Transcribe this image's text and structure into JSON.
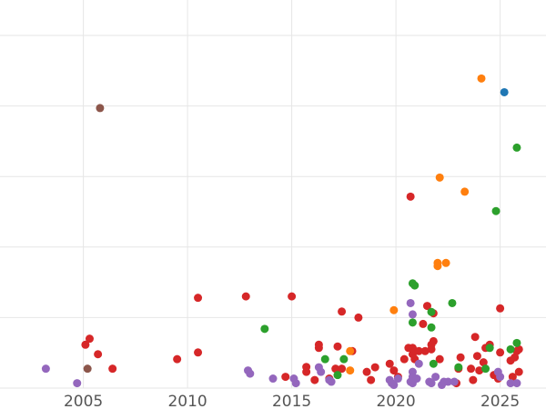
{
  "chart_data": {
    "type": "scatter",
    "title": "",
    "xlabel": "",
    "ylabel": "",
    "xlim": [
      2001.0,
      2027.2
    ],
    "ylim": [
      0,
      100
    ],
    "grid": true,
    "legend": "none",
    "x_ticks": [
      2005,
      2010,
      2015,
      2020,
      2025
    ],
    "x_tick_labels": [
      "2005",
      "2010",
      "2015",
      "2020",
      "2025"
    ],
    "y_gridlines": [
      0,
      20,
      40,
      60,
      80,
      100
    ],
    "series": [
      {
        "color": "#d62728",
        "points": [
          [
            2005.1,
            12.3
          ],
          [
            2005.3,
            14.0
          ],
          [
            2005.7,
            9.6
          ],
          [
            2006.4,
            5.5
          ],
          [
            2009.5,
            8.2
          ],
          [
            2010.5,
            10.1
          ],
          [
            2010.5,
            25.6
          ],
          [
            2012.8,
            26.0
          ],
          [
            2015.0,
            26.0
          ],
          [
            2014.7,
            3.2
          ],
          [
            2015.7,
            4.6
          ],
          [
            2015.7,
            6.0
          ],
          [
            2016.1,
            2.3
          ],
          [
            2016.3,
            11.4
          ],
          [
            2016.3,
            12.3
          ],
          [
            2016.8,
            2.7
          ],
          [
            2017.1,
            5.5
          ],
          [
            2017.2,
            11.8
          ],
          [
            2017.4,
            5.5
          ],
          [
            2017.4,
            21.7
          ],
          [
            2017.9,
            10.5
          ],
          [
            2018.2,
            20.0
          ],
          [
            2018.6,
            4.6
          ],
          [
            2018.8,
            2.3
          ],
          [
            2019.0,
            5.9
          ],
          [
            2019.7,
            6.9
          ],
          [
            2019.9,
            5.0
          ],
          [
            2020.1,
            3.2
          ],
          [
            2020.4,
            8.2
          ],
          [
            2020.6,
            11.4
          ],
          [
            2020.7,
            54.3
          ],
          [
            2020.8,
            11.4
          ],
          [
            2020.8,
            9.6
          ],
          [
            2020.9,
            10.5
          ],
          [
            2020.9,
            8.2
          ],
          [
            2021.1,
            10.5
          ],
          [
            2021.3,
            18.2
          ],
          [
            2021.4,
            10.5
          ],
          [
            2021.5,
            23.3
          ],
          [
            2021.7,
            11.0
          ],
          [
            2021.7,
            12.3
          ],
          [
            2021.8,
            13.3
          ],
          [
            2021.8,
            21.2
          ],
          [
            2022.1,
            8.2
          ],
          [
            2022.9,
            1.4
          ],
          [
            2023.0,
            5.5
          ],
          [
            2023.1,
            8.7
          ],
          [
            2023.6,
            5.5
          ],
          [
            2023.7,
            2.3
          ],
          [
            2023.8,
            14.5
          ],
          [
            2023.9,
            9.1
          ],
          [
            2024.0,
            5.0
          ],
          [
            2024.2,
            7.3
          ],
          [
            2024.3,
            11.4
          ],
          [
            2024.5,
            12.3
          ],
          [
            2024.7,
            3.7
          ],
          [
            2025.0,
            22.6
          ],
          [
            2025.0,
            10.1
          ],
          [
            2025.5,
            7.8
          ],
          [
            2025.7,
            8.7
          ],
          [
            2025.8,
            10.5
          ],
          [
            2025.9,
            4.6
          ],
          [
            2025.9,
            11.0
          ],
          [
            2025.6,
            3.2
          ],
          [
            2024.9,
            2.7
          ]
        ]
      },
      {
        "color": "#9467bd",
        "points": [
          [
            2003.2,
            5.5
          ],
          [
            2004.7,
            1.4
          ],
          [
            2012.9,
            5.0
          ],
          [
            2013.0,
            4.1
          ],
          [
            2014.1,
            2.7
          ],
          [
            2015.1,
            2.7
          ],
          [
            2015.2,
            1.4
          ],
          [
            2016.3,
            5.9
          ],
          [
            2016.4,
            4.6
          ],
          [
            2016.8,
            2.3
          ],
          [
            2016.9,
            1.8
          ],
          [
            2019.7,
            2.3
          ],
          [
            2019.8,
            1.4
          ],
          [
            2019.9,
            0.9
          ],
          [
            2020.1,
            2.7
          ],
          [
            2020.7,
            24.1
          ],
          [
            2020.8,
            20.9
          ],
          [
            2020.8,
            4.6
          ],
          [
            2020.8,
            3.2
          ],
          [
            2020.8,
            1.4
          ],
          [
            2021.0,
            2.7
          ],
          [
            2021.1,
            6.9
          ],
          [
            2021.6,
            1.8
          ],
          [
            2021.7,
            1.4
          ],
          [
            2021.9,
            3.2
          ],
          [
            2022.2,
            0.9
          ],
          [
            2022.3,
            1.8
          ],
          [
            2022.5,
            1.8
          ],
          [
            2022.8,
            1.8
          ],
          [
            2024.9,
            4.6
          ],
          [
            2025.0,
            3.2
          ],
          [
            2025.5,
            1.4
          ],
          [
            2025.8,
            1.4
          ],
          [
            2020.7,
            1.8
          ]
        ]
      },
      {
        "color": "#2ca02c",
        "points": [
          [
            2013.7,
            16.8
          ],
          [
            2016.6,
            8.2
          ],
          [
            2017.2,
            3.7
          ],
          [
            2017.5,
            8.2
          ],
          [
            2020.8,
            29.7
          ],
          [
            2020.9,
            29.1
          ],
          [
            2020.8,
            18.6
          ],
          [
            2021.7,
            21.6
          ],
          [
            2021.7,
            17.2
          ],
          [
            2021.8,
            6.9
          ],
          [
            2022.7,
            24.1
          ],
          [
            2023.0,
            5.9
          ],
          [
            2024.3,
            5.5
          ],
          [
            2024.5,
            11.4
          ],
          [
            2024.8,
            50.2
          ],
          [
            2025.5,
            11.0
          ],
          [
            2025.8,
            12.8
          ],
          [
            2025.8,
            68.2
          ]
        ]
      },
      {
        "color": "#ff7f0e",
        "points": [
          [
            2017.8,
            10.5
          ],
          [
            2017.8,
            5.0
          ],
          [
            2019.9,
            22.1
          ],
          [
            2022.0,
            34.6
          ],
          [
            2022.0,
            35.5
          ],
          [
            2022.4,
            35.5
          ],
          [
            2022.1,
            59.7
          ],
          [
            2023.3,
            55.7
          ],
          [
            2024.1,
            87.8
          ]
        ]
      },
      {
        "color": "#1f77b4",
        "points": [
          [
            2025.2,
            83.9
          ]
        ]
      },
      {
        "color": "#8c564b",
        "points": [
          [
            2005.8,
            79.4
          ],
          [
            2005.2,
            5.5
          ]
        ]
      }
    ]
  }
}
